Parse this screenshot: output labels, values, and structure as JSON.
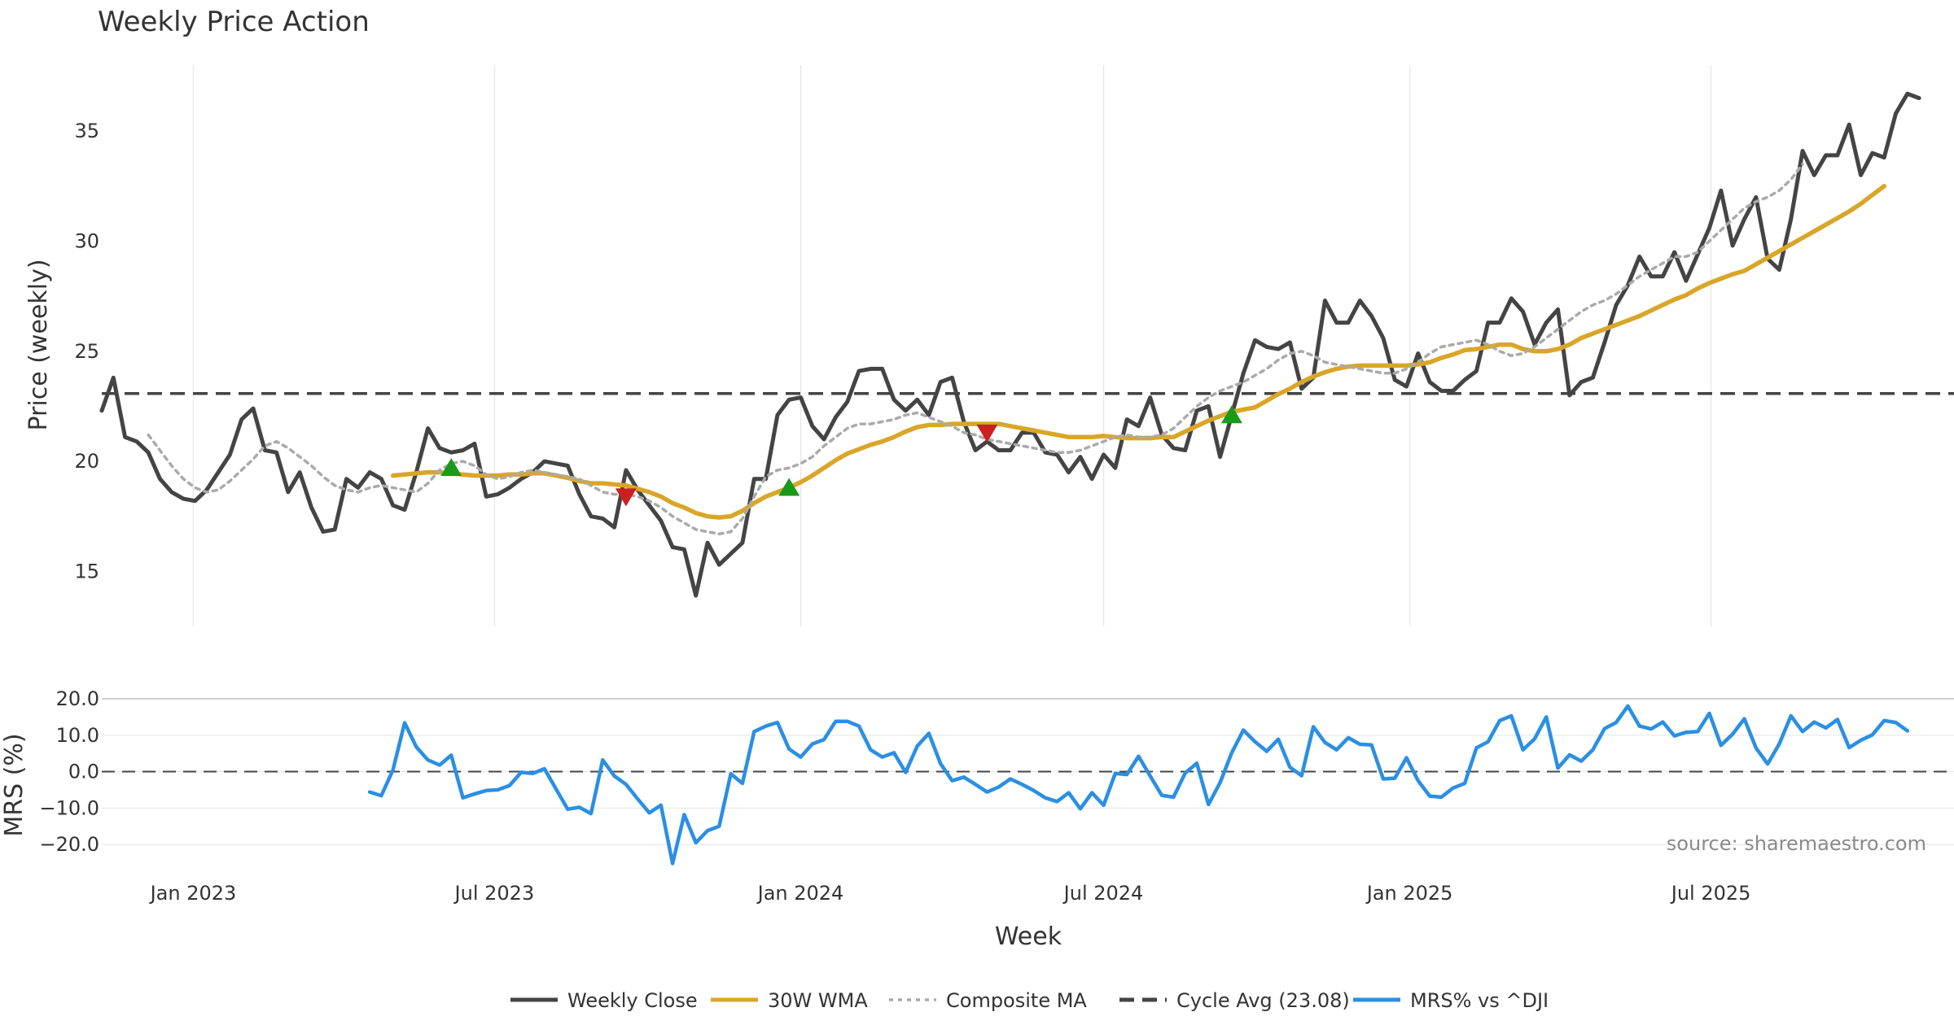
{
  "chart_data": {
    "type": "line",
    "title": "Weekly Price Action",
    "xlabel": "Week",
    "source": "source: sharemaestro.com",
    "x_tick_labels": [
      "Jan 2023",
      "Jul 2023",
      "Jan 2024",
      "Jul 2024",
      "Jan 2025",
      "Jul 2025"
    ],
    "x_range": [
      "2022-11-07",
      "2025-11-24"
    ],
    "panels": [
      {
        "name": "price",
        "ylabel": "Price (weekly)",
        "ylim": [
          12.5,
          38
        ],
        "yticks": [
          15,
          20,
          25,
          30,
          35
        ],
        "ytick_labels": [
          "15",
          "20",
          "25",
          "30",
          "35"
        ],
        "grid": "vertical",
        "hline": {
          "name": "Cycle Avg (23.08)",
          "value": 23.08
        }
      },
      {
        "name": "mrs",
        "ylabel": "MRS (%)",
        "ylim": [
          -26,
          22
        ],
        "yticks": [
          -20,
          -10,
          0,
          10,
          20
        ],
        "ytick_labels": [
          "−20.0",
          "−10.0",
          "0.0",
          "10.0",
          "20.0"
        ],
        "grid": "horizontal",
        "hline": {
          "value": 0
        }
      }
    ],
    "series": [
      {
        "name": "Weekly Close",
        "panel": "price",
        "color": "#444444",
        "style": "solid",
        "start": "2022-11-07",
        "step_days": 7,
        "values": [
          22.3,
          23.8,
          21.1,
          20.9,
          20.4,
          19.2,
          18.6,
          18.3,
          18.2,
          18.7,
          19.5,
          20.3,
          21.9,
          22.4,
          20.5,
          20.4,
          18.6,
          19.5,
          17.9,
          16.8,
          16.9,
          19.2,
          18.8,
          19.5,
          19.2,
          18.0,
          17.8,
          19.5,
          21.5,
          20.6,
          20.4,
          20.5,
          20.8,
          18.4,
          18.5,
          18.8,
          19.2,
          19.5,
          20.0,
          19.9,
          19.8,
          18.5,
          17.5,
          17.4,
          17.0,
          19.6,
          18.7,
          18.0,
          17.3,
          16.1,
          16.0,
          13.9,
          16.3,
          15.3,
          15.8,
          16.3,
          19.2,
          19.2,
          22.1,
          22.8,
          22.9,
          21.6,
          21.0,
          22.0,
          22.7,
          24.1,
          24.2,
          24.2,
          22.8,
          22.3,
          22.8,
          22.1,
          23.6,
          23.8,
          21.8,
          20.5,
          20.9,
          20.5,
          20.5,
          21.3,
          21.3,
          20.4,
          20.3,
          19.5,
          20.2,
          19.2,
          20.3,
          19.7,
          21.9,
          21.6,
          22.9,
          21.2,
          20.6,
          20.5,
          22.3,
          22.5,
          20.2,
          22.1,
          24.0,
          25.5,
          25.2,
          25.1,
          25.4,
          23.3,
          23.8,
          27.3,
          26.3,
          26.3,
          27.3,
          26.6,
          25.6,
          23.7,
          23.4,
          24.9,
          23.6,
          23.2,
          23.2,
          23.7,
          24.1,
          26.3,
          26.3,
          27.4,
          26.8,
          25.3,
          26.3,
          26.9,
          23.0,
          23.6,
          23.8,
          25.4,
          27.1,
          28.0,
          29.3,
          28.4,
          28.4,
          29.5,
          28.2,
          29.4,
          30.6,
          32.3,
          29.8,
          31.0,
          32.0,
          29.2,
          28.7,
          31.0,
          34.1,
          33.0,
          33.9,
          33.9,
          35.3,
          33.0,
          34.0,
          33.8,
          35.8,
          36.7,
          36.5
        ]
      },
      {
        "name": "30W WMA",
        "panel": "price",
        "color": "#d9a628",
        "style": "solid",
        "start": "2023-05-01",
        "step_days": 7,
        "values": [
          19.35,
          19.4,
          19.45,
          19.5,
          19.5,
          19.45,
          19.4,
          19.35,
          19.35,
          19.35,
          19.4,
          19.4,
          19.45,
          19.45,
          19.35,
          19.25,
          19.1,
          19.0,
          19.0,
          18.95,
          18.9,
          18.75,
          18.6,
          18.4,
          18.1,
          17.9,
          17.65,
          17.5,
          17.45,
          17.5,
          17.75,
          18.1,
          18.4,
          18.6,
          18.8,
          19.05,
          19.35,
          19.7,
          20.05,
          20.35,
          20.55,
          20.75,
          20.9,
          21.1,
          21.35,
          21.55,
          21.65,
          21.65,
          21.7,
          21.7,
          21.7,
          21.7,
          21.7,
          21.6,
          21.5,
          21.4,
          21.3,
          21.2,
          21.1,
          21.1,
          21.1,
          21.15,
          21.1,
          21.05,
          21.05,
          21.05,
          21.1,
          21.1,
          21.35,
          21.6,
          21.85,
          22.05,
          22.25,
          22.35,
          22.45,
          22.75,
          23.05,
          23.3,
          23.6,
          23.85,
          24.05,
          24.2,
          24.3,
          24.35,
          24.35,
          24.35,
          24.35,
          24.35,
          24.4,
          24.5,
          24.7,
          24.85,
          25.05,
          25.1,
          25.2,
          25.3,
          25.3,
          25.1,
          25.0,
          25.0,
          25.1,
          25.3,
          25.6,
          25.8,
          26.0,
          26.2,
          26.4,
          26.6,
          26.85,
          27.1,
          27.35,
          27.55,
          27.85,
          28.1,
          28.3,
          28.5,
          28.65,
          28.95,
          29.25,
          29.55,
          29.85,
          30.15,
          30.45,
          30.75,
          31.05,
          31.35,
          31.7,
          32.1,
          32.5
        ]
      },
      {
        "name": "Composite MA",
        "panel": "price",
        "color": "#aaaaaa",
        "style": "dotted",
        "start": "2022-12-05",
        "step_days": 7,
        "values": [
          21.2,
          20.5,
          19.8,
          19.2,
          18.8,
          18.6,
          18.7,
          19.1,
          19.6,
          20.1,
          20.7,
          20.9,
          20.6,
          20.2,
          19.8,
          19.3,
          18.9,
          18.7,
          18.6,
          18.8,
          18.9,
          18.8,
          18.7,
          18.6,
          19.0,
          19.6,
          19.9,
          20.0,
          19.8,
          19.4,
          19.2,
          19.3,
          19.5,
          19.6,
          19.5,
          19.4,
          19.3,
          19.2,
          18.9,
          18.6,
          18.5,
          18.5,
          18.4,
          18.2,
          17.9,
          17.5,
          17.2,
          16.9,
          16.8,
          16.7,
          16.8,
          17.4,
          18.4,
          19.3,
          19.6,
          19.7,
          19.9,
          20.2,
          20.7,
          21.1,
          21.5,
          21.7,
          21.7,
          21.8,
          21.9,
          22.1,
          22.2,
          22.0,
          21.8,
          21.6,
          21.3,
          21.2,
          21.0,
          20.9,
          20.8,
          20.7,
          20.6,
          20.5,
          20.4,
          20.4,
          20.5,
          20.7,
          20.9,
          21.1,
          21.2,
          21.1,
          21.1,
          21.2,
          21.5,
          22.0,
          22.5,
          22.9,
          23.2,
          23.4,
          23.6,
          23.9,
          24.2,
          24.6,
          24.9,
          25.0,
          24.8,
          24.5,
          24.4,
          24.3,
          24.2,
          24.1,
          24.0,
          24.0,
          24.2,
          24.5,
          24.9,
          25.2,
          25.3,
          25.4,
          25.5,
          25.3,
          25.0,
          24.8,
          24.9,
          25.2,
          25.6,
          26.0,
          26.4,
          26.8,
          27.1,
          27.3,
          27.6,
          28.0,
          28.4,
          28.7,
          29.0,
          29.3,
          29.3,
          29.5,
          30.0,
          30.5,
          31.0,
          31.5,
          31.8,
          32.0,
          32.3,
          32.8,
          33.5
        ]
      },
      {
        "name": "MRS% vs ^DJI",
        "panel": "mrs",
        "color": "#2b8fe3",
        "style": "solid",
        "start": "2023-04-17",
        "step_days": 7,
        "values": [
          -5.6,
          -6.6,
          0.5,
          13.4,
          6.8,
          3.2,
          1.8,
          4.5,
          -7.2,
          -6.1,
          -5.2,
          -5.0,
          -3.8,
          -0.2,
          -0.5,
          0.8,
          -4.8,
          -10.3,
          -9.8,
          -11.5,
          3.2,
          -1.2,
          -3.5,
          -7.5,
          -11.3,
          -9.2,
          -25.2,
          -11.8,
          -19.5,
          -16.2,
          -15.0,
          -0.6,
          -3.2,
          11.0,
          12.5,
          13.5,
          6.2,
          4.0,
          7.6,
          8.8,
          13.8,
          13.8,
          12.5,
          6.0,
          4.0,
          5.2,
          -0.2,
          7.0,
          10.5,
          2.2,
          -2.5,
          -1.5,
          -3.5,
          -5.6,
          -4.2,
          -2.0,
          -3.5,
          -5.2,
          -7.2,
          -8.2,
          -5.8,
          -10.2,
          -5.8,
          -9.2,
          -0.5,
          -0.8,
          4.2,
          -1.2,
          -6.5,
          -7.0,
          -0.4,
          2.3,
          -9.0,
          -3.0,
          5.2,
          11.4,
          8.2,
          5.6,
          8.9,
          1.2,
          -1.1,
          12.3,
          8.0,
          6.0,
          9.3,
          7.5,
          7.3,
          -2.0,
          -1.8,
          3.8,
          -2.5,
          -6.7,
          -7.0,
          -4.5,
          -3.2,
          6.5,
          8.2,
          14.0,
          15.3,
          6.0,
          9.0,
          15.0,
          1.0,
          4.6,
          2.9,
          6.0,
          11.8,
          13.5,
          18.0,
          12.5,
          11.7,
          13.6,
          9.8,
          10.8,
          11.0,
          16.0,
          7.2,
          10.3,
          14.5,
          6.5,
          2.1,
          7.6,
          15.3,
          11.0,
          13.6,
          12.0,
          14.3,
          6.6,
          8.6,
          10.1,
          14.0,
          13.5,
          11.2
        ]
      }
    ],
    "signals": [
      {
        "type": "buy",
        "date": "2023-06-05",
        "price": 19.7,
        "color": "#1a9a1a"
      },
      {
        "type": "sell",
        "date": "2023-09-18",
        "price": 18.4,
        "color": "#cc1f1f"
      },
      {
        "type": "buy",
        "date": "2023-12-25",
        "price": 18.8,
        "color": "#1a9a1a"
      },
      {
        "type": "sell",
        "date": "2024-04-22",
        "price": 21.3,
        "color": "#cc1f1f"
      },
      {
        "type": "buy",
        "date": "2024-09-16",
        "price": 22.1,
        "color": "#1a9a1a"
      }
    ],
    "legend": {
      "position": "bottom-center",
      "entries": [
        {
          "label": "Weekly Close",
          "color": "#444444",
          "style": "solid"
        },
        {
          "label": "30W WMA",
          "color": "#d9a628",
          "style": "solid"
        },
        {
          "label": "Composite MA",
          "color": "#aaaaaa",
          "style": "dotted"
        },
        {
          "label": "Cycle Avg (23.08)",
          "color": "#444444",
          "style": "dashed"
        },
        {
          "label": "MRS% vs ^DJI",
          "color": "#2b8fe3",
          "style": "solid"
        }
      ]
    }
  }
}
